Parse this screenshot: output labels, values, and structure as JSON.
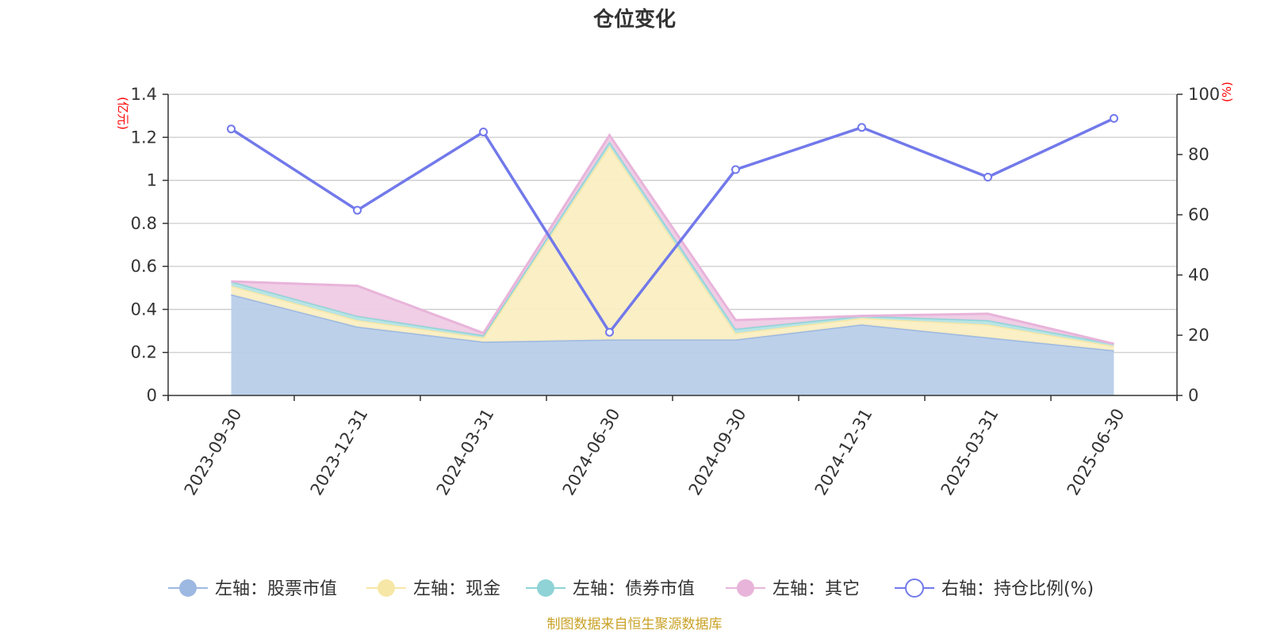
{
  "chart_data": {
    "type": "area",
    "title": "仓位变化",
    "categories": [
      "2023-09-30",
      "2023-12-31",
      "2024-03-31",
      "2024-06-30",
      "2024-09-30",
      "2024-12-31",
      "2025-03-31",
      "2025-06-30"
    ],
    "left_axis": {
      "unit": "(亿元)",
      "ylim": [
        0,
        1.4
      ],
      "ticks": [
        "0",
        "0.2",
        "0.4",
        "0.6",
        "0.8",
        "1",
        "1.2",
        "1.4"
      ]
    },
    "right_axis": {
      "unit": "(%)",
      "ylim": [
        0,
        100
      ],
      "ticks": [
        "0",
        "20",
        "40",
        "60",
        "80",
        "100"
      ]
    },
    "series": [
      {
        "name": "左轴：股票市值",
        "type": "area",
        "stacked": true,
        "color": "#9db8e1",
        "fill": "#b8cde9",
        "values": [
          0.47,
          0.32,
          0.25,
          0.26,
          0.26,
          0.33,
          0.27,
          0.21
        ]
      },
      {
        "name": "左轴：现金",
        "type": "area",
        "stacked": true,
        "color": "#f7e7a6",
        "fill": "#faeec2",
        "values": [
          0.04,
          0.03,
          0.02,
          0.9,
          0.03,
          0.03,
          0.06,
          0.02
        ]
      },
      {
        "name": "左轴：债券市值",
        "type": "area",
        "stacked": true,
        "color": "#8fd3d6",
        "fill": "#b5e3e5",
        "values": [
          0.02,
          0.02,
          0.01,
          0.02,
          0.02,
          0.01,
          0.02,
          0.01
        ]
      },
      {
        "name": "左轴：其它",
        "type": "area",
        "stacked": true,
        "color": "#e8b4da",
        "fill": "#efcbe5",
        "values": [
          0.0,
          0.14,
          0.01,
          0.03,
          0.04,
          0.0,
          0.03,
          0.0
        ]
      },
      {
        "name": "右轴：持仓比例(%)",
        "type": "line",
        "axis": "right",
        "color": "#7279ea",
        "values": [
          88.5,
          61.5,
          87.5,
          21.0,
          75.0,
          89.0,
          72.5,
          92.0
        ]
      }
    ],
    "grid": true,
    "legend": "bottom"
  },
  "footer": "制图数据来自恒生聚源数据库"
}
